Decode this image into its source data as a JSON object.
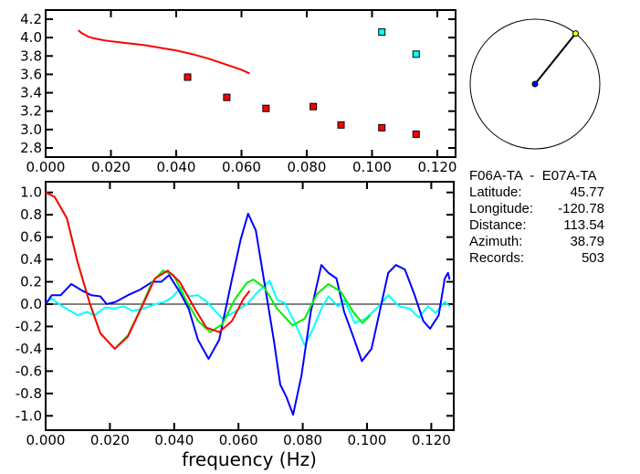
{
  "chart_data": [
    {
      "type": "scatter",
      "title": "",
      "xlabel": "",
      "ylabel": "",
      "xlim": [
        0,
        0.125
      ],
      "ylim": [
        2.7,
        4.25
      ],
      "xticks": [
        "0.000",
        "0.020",
        "0.040",
        "0.060",
        "0.080",
        "0.100",
        "0.120"
      ],
      "xtick_values": [
        0,
        0.02,
        0.04,
        0.06,
        0.08,
        0.1,
        0.12
      ],
      "yticks": [
        "2.8",
        "3.0",
        "3.2",
        "3.4",
        "3.6",
        "3.8",
        "4.0",
        "4.2"
      ],
      "ytick_values": [
        2.8,
        3.0,
        3.2,
        3.4,
        3.6,
        3.8,
        4.0,
        4.2
      ],
      "series": [
        {
          "name": "model-curve",
          "kind": "line",
          "color": "#ff0000",
          "x": [
            0.01,
            0.011,
            0.012,
            0.013,
            0.015,
            0.018,
            0.02,
            0.025,
            0.03,
            0.035,
            0.04,
            0.045,
            0.05,
            0.055,
            0.06,
            0.0625
          ],
          "y": [
            4.08,
            4.05,
            4.03,
            4.01,
            3.99,
            3.97,
            3.96,
            3.94,
            3.92,
            3.89,
            3.86,
            3.82,
            3.77,
            3.71,
            3.65,
            3.61
          ]
        },
        {
          "name": "measured-red",
          "kind": "points",
          "color": "#ff0000",
          "x": [
            0.0435,
            0.0555,
            0.0675,
            0.082,
            0.0905,
            0.103,
            0.1135
          ],
          "y": [
            3.57,
            3.35,
            3.23,
            3.25,
            3.05,
            3.02,
            2.95
          ]
        },
        {
          "name": "measured-cyan",
          "kind": "points",
          "color": "#00ffff",
          "x": [
            0.103,
            0.1135
          ],
          "y": [
            4.06,
            3.82
          ]
        }
      ]
    },
    {
      "type": "line",
      "title": "",
      "xlabel": "frequency (Hz)",
      "ylabel": "",
      "xlim": [
        0,
        0.1257
      ],
      "ylim": [
        -1.1,
        1.1
      ],
      "xticks": [
        "0.000",
        "0.020",
        "0.040",
        "0.060",
        "0.080",
        "0.100",
        "0.120"
      ],
      "xtick_values": [
        0,
        0.02,
        0.04,
        0.06,
        0.08,
        0.1,
        0.12
      ],
      "yticks": [
        "1.0",
        "0.8",
        "0.6",
        "0.4",
        "0.2",
        "0.0",
        "-0.2",
        "-0.4",
        "-0.6",
        "-0.8",
        "-1.0"
      ],
      "ytick_values": [
        1.0,
        0.8,
        0.6,
        0.4,
        0.2,
        0.0,
        -0.2,
        -0.4,
        -0.6,
        -0.8,
        -1.0
      ],
      "series": [
        {
          "name": "cyan",
          "color": "#00ffff",
          "x": [
            0,
            0.0019,
            0.0047,
            0.01,
            0.0128,
            0.0152,
            0.0185,
            0.0213,
            0.0242,
            0.027,
            0.0303,
            0.0341,
            0.037,
            0.0393,
            0.0422,
            0.0445,
            0.0474,
            0.0502,
            0.055,
            0.0588,
            0.063,
            0.0654,
            0.0697,
            0.072,
            0.0744,
            0.0773,
            0.0806,
            0.0834,
            0.0858,
            0.088,
            0.091,
            0.0929,
            0.0962,
            0.0995,
            0.1033,
            0.1066,
            0.11,
            0.1133,
            0.1161,
            0.119,
            0.1213,
            0.1242,
            0.1257
          ],
          "y": [
            0.01,
            0.05,
            -0.01,
            -0.1,
            -0.07,
            -0.1,
            -0.03,
            -0.04,
            -0.02,
            -0.06,
            -0.04,
            0,
            0.02,
            0.06,
            0.15,
            0.07,
            0.08,
            0.02,
            -0.13,
            -0.07,
            0.01,
            0.09,
            0.21,
            0.04,
            0.01,
            -0.15,
            -0.37,
            -0.21,
            -0.04,
            0.07,
            -0.02,
            0.04,
            -0.17,
            -0.13,
            -0.03,
            0.08,
            -0.02,
            -0.04,
            -0.12,
            -0.02,
            -0.08,
            0.02,
            -0.02
          ]
        },
        {
          "name": "blue",
          "color": "#0000ff",
          "x": [
            0,
            0.0019,
            0.0047,
            0.008,
            0.0114,
            0.0142,
            0.017,
            0.019,
            0.0218,
            0.0256,
            0.0294,
            0.0332,
            0.036,
            0.0384,
            0.0417,
            0.0445,
            0.0474,
            0.0507,
            0.054,
            0.0578,
            0.0607,
            0.063,
            0.0654,
            0.0682,
            0.0711,
            0.073,
            0.0749,
            0.077,
            0.0796,
            0.0825,
            0.0858,
            0.088,
            0.0905,
            0.0929,
            0.0957,
            0.0984,
            0.1014,
            0.1043,
            0.1066,
            0.109,
            0.1118,
            0.1147,
            0.1175,
            0.1196,
            0.1223,
            0.1242,
            0.1252,
            0.1257
          ],
          "y": [
            0,
            0.08,
            0.08,
            0.18,
            0.12,
            0.08,
            0.07,
            0,
            0.02,
            0.08,
            0.13,
            0.2,
            0.2,
            0.26,
            0.11,
            -0.04,
            -0.32,
            -0.49,
            -0.32,
            0.2,
            0.58,
            0.81,
            0.66,
            0.17,
            -0.34,
            -0.72,
            -0.83,
            -0.99,
            -0.64,
            -0.07,
            0.35,
            0.28,
            0.23,
            -0.07,
            -0.29,
            -0.51,
            -0.4,
            -0.02,
            0.28,
            0.35,
            0.31,
            0.09,
            -0.15,
            -0.22,
            -0.1,
            0.23,
            0.28,
            0.22
          ]
        },
        {
          "name": "green",
          "color": "#00ee00",
          "x": [
            0,
            0.0028,
            0.0066,
            0.01,
            0.0137,
            0.017,
            0.0215,
            0.0256,
            0.0294,
            0.0332,
            0.0365,
            0.0398,
            0.0436,
            0.0474,
            0.0512,
            0.055,
            0.0588,
            0.0626,
            0.0646,
            0.068,
            0.072,
            0.0768,
            0.0806,
            0.0844,
            0.088,
            0.0919,
            0.0957,
            0.0986,
            0.101
          ],
          "y": [
            1.0,
            0.96,
            0.77,
            0.37,
            0.01,
            -0.26,
            -0.4,
            -0.28,
            -0.05,
            0.2,
            0.3,
            0.26,
            0.04,
            -0.15,
            -0.25,
            -0.18,
            0.04,
            0.19,
            0.22,
            0.15,
            -0.04,
            -0.19,
            -0.13,
            0.09,
            0.18,
            0.11,
            -0.07,
            -0.17,
            -0.1
          ]
        },
        {
          "name": "red",
          "color": "#ff0000",
          "x": [
            0,
            0.0028,
            0.0066,
            0.01,
            0.0137,
            0.017,
            0.0215,
            0.0256,
            0.03,
            0.034,
            0.038,
            0.0417,
            0.0464,
            0.05,
            0.054,
            0.058,
            0.0616,
            0.0635
          ],
          "y": [
            1.0,
            0.96,
            0.77,
            0.37,
            0.01,
            -0.26,
            -0.4,
            -0.29,
            -0.02,
            0.23,
            0.3,
            0.2,
            -0.04,
            -0.21,
            -0.25,
            -0.15,
            0.05,
            0.12
          ]
        }
      ]
    }
  ],
  "map": {
    "azimuth_deg": 38.79,
    "center_color": "#0000ff",
    "station_color": "#ffff00"
  },
  "info": {
    "pair": "F06A-TA  -  E07A-TA",
    "rows": [
      {
        "label": "Latitude:",
        "value": "45.77"
      },
      {
        "label": "Longitude:",
        "value": "-120.78"
      },
      {
        "label": "Distance:",
        "value": "113.54"
      },
      {
        "label": "Azimuth:",
        "value": "38.79"
      },
      {
        "label": "Records:",
        "value": "503"
      }
    ]
  }
}
